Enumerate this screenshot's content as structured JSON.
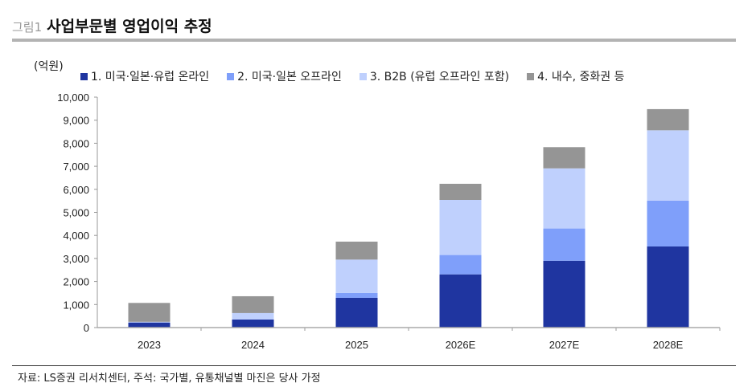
{
  "header": {
    "figure_label": "그림1",
    "title": "사업부문별 영업이익 추정",
    "source": "자료: LS증권 리서치센터, 주석: 국가별, 유통채널별 마진은 당사 가정"
  },
  "chart_data": {
    "type": "bar",
    "stacked": true,
    "title": "사업부문별 영업이익 추정",
    "ylabel": "(억원)",
    "xlabel": "",
    "ylim": [
      0,
      10000
    ],
    "yticks": [
      0,
      1000,
      2000,
      3000,
      4000,
      5000,
      6000,
      7000,
      8000,
      9000,
      10000
    ],
    "ytick_labels": [
      "0",
      "1,000",
      "2,000",
      "3,000",
      "4,000",
      "5,000",
      "6,000",
      "7,000",
      "8,000",
      "9,000",
      "10,000"
    ],
    "grid": false,
    "legend_position": "top",
    "categories": [
      "2023",
      "2024",
      "2025",
      "2026E",
      "2027E",
      "2028E"
    ],
    "series": [
      {
        "name": "1. 미국·일본·유럽 온라인",
        "color": "#1f35a0",
        "values": [
          220,
          350,
          1290,
          2310,
          2900,
          3520
        ]
      },
      {
        "name": "2. 미국·일본 오프라인",
        "color": "#7f9ffa",
        "values": [
          0,
          0,
          210,
          840,
          1400,
          1990
        ]
      },
      {
        "name": "3. B2B (유럽 오프라인 포함)",
        "color": "#bfd0fd",
        "values": [
          30,
          280,
          1450,
          2390,
          2610,
          3050
        ]
      },
      {
        "name": "4. 내수, 중화권 등",
        "color": "#959595",
        "values": [
          820,
          730,
          780,
          700,
          920,
          920
        ]
      }
    ]
  }
}
